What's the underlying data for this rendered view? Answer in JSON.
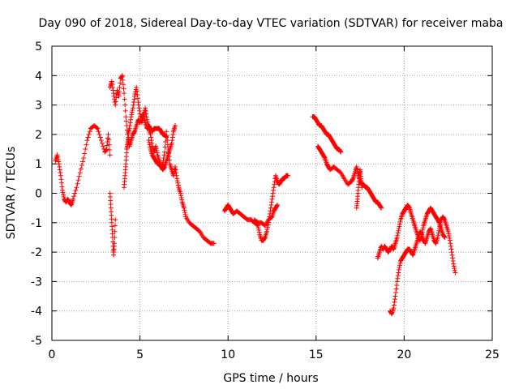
{
  "chart_data": {
    "type": "scatter",
    "title": "Day 090 of 2018, Sidereal Day-to-day VTEC variation (SDTVAR) for receiver maba",
    "xlabel": "GPS time / hours",
    "ylabel": "SDTVAR / TECUs",
    "xlim": [
      0,
      25
    ],
    "ylim": [
      -5,
      5
    ],
    "xticks": [
      0,
      5,
      10,
      15,
      20,
      25
    ],
    "yticks": [
      -5,
      -4,
      -3,
      -2,
      -1,
      0,
      1,
      2,
      3,
      4,
      5
    ],
    "grid": true,
    "marker": "+",
    "color": "#ff0000",
    "series": [
      {
        "name": "SDTVAR",
        "segments": [
          {
            "x": [
              0.2,
              0.3,
              0.4,
              0.5,
              0.6,
              0.7,
              0.8,
              0.9,
              1.0,
              1.1,
              1.2,
              1.4,
              1.6,
              1.8,
              2.0,
              2.2,
              2.4,
              2.6,
              2.8,
              3.0,
              3.1,
              3.2,
              3.3
            ],
            "y": [
              1.1,
              1.3,
              1.0,
              0.6,
              0.1,
              -0.2,
              -0.3,
              -0.2,
              -0.3,
              -0.4,
              -0.2,
              0.2,
              0.7,
              1.2,
              1.8,
              2.2,
              2.3,
              2.2,
              1.8,
              1.4,
              1.5,
              2.0,
              1.3
            ]
          },
          {
            "x": [
              3.3,
              3.35,
              3.4,
              3.45,
              3.5,
              3.55,
              3.6
            ],
            "y": [
              0.0,
              -0.5,
              -1.0,
              -1.5,
              -2.1,
              -1.7,
              -0.9
            ]
          },
          {
            "x": [
              3.3,
              3.4,
              3.5,
              3.6,
              3.7,
              3.8,
              3.9,
              4.0,
              4.1,
              4.2,
              4.3,
              4.4,
              4.5,
              4.6,
              4.7,
              4.8,
              4.9,
              5.0,
              5.1,
              5.2,
              5.3,
              5.4,
              5.5,
              5.6,
              5.7,
              5.8,
              5.9,
              6.0,
              6.1,
              6.2,
              6.3,
              6.4,
              6.5,
              6.6,
              6.7,
              6.8,
              6.9,
              7.0,
              7.1,
              7.2,
              7.3,
              7.4,
              7.5,
              7.6,
              7.8,
              8.0,
              8.2,
              8.4,
              8.6,
              8.8,
              9.0,
              9.2
            ],
            "y": [
              3.6,
              3.8,
              3.4,
              3.0,
              3.5,
              3.3,
              3.9,
              4.0,
              3.4,
              2.6,
              2.0,
              2.2,
              2.6,
              2.9,
              3.3,
              3.6,
              3.1,
              2.7,
              2.4,
              2.6,
              2.9,
              2.5,
              2.2,
              2.0,
              1.6,
              1.4,
              1.6,
              1.3,
              1.1,
              0.9,
              1.0,
              1.4,
              2.1,
              1.5,
              1.0,
              0.8,
              0.6,
              0.9,
              0.5,
              0.2,
              0.0,
              -0.3,
              -0.5,
              -0.8,
              -1.0,
              -1.1,
              -1.2,
              -1.3,
              -1.5,
              -1.6,
              -1.7,
              -1.7
            ]
          },
          {
            "x": [
              4.1,
              4.15,
              4.2,
              4.25,
              4.3,
              4.35,
              4.4,
              4.5,
              4.6,
              4.7,
              4.8,
              4.9,
              5.0,
              5.1,
              5.2,
              5.3,
              5.4,
              5.5,
              5.6,
              5.7,
              5.8,
              5.9,
              6.0,
              6.1,
              6.2,
              6.3,
              6.4,
              6.5
            ],
            "y": [
              0.2,
              0.6,
              1.0,
              1.5,
              1.7,
              1.9,
              1.6,
              1.8,
              2.0,
              2.1,
              2.3,
              2.5,
              2.4,
              2.6,
              2.7,
              2.4,
              2.2,
              2.3,
              2.2,
              2.1,
              2.2,
              2.2,
              2.2,
              2.2,
              2.1,
              2.0,
              2.0,
              1.9
            ]
          },
          {
            "x": [
              5.5,
              5.6,
              5.7,
              5.8,
              5.9,
              6.0,
              6.1,
              6.2,
              6.3,
              6.4,
              6.5,
              6.6,
              6.7,
              6.8,
              6.9,
              7.0
            ],
            "y": [
              1.8,
              1.5,
              1.3,
              1.2,
              1.1,
              1.0,
              1.0,
              0.9,
              0.8,
              0.9,
              1.1,
              1.3,
              1.5,
              1.7,
              2.1,
              2.3
            ]
          },
          {
            "x": [
              9.8,
              9.9,
              10.0,
              10.1,
              10.2,
              10.3,
              10.5,
              10.7,
              10.9,
              11.1,
              11.3,
              11.5,
              11.7,
              11.8,
              11.9,
              12.0,
              12.1,
              12.2,
              12.3,
              12.4,
              12.5,
              12.6,
              12.7,
              12.8,
              12.9,
              13.0,
              13.1,
              13.2,
              13.3,
              13.4
            ],
            "y": [
              -0.6,
              -0.5,
              -0.4,
              -0.5,
              -0.6,
              -0.7,
              -0.6,
              -0.7,
              -0.8,
              -0.9,
              -0.9,
              -1.0,
              -1.1,
              -1.4,
              -1.6,
              -1.6,
              -1.5,
              -1.3,
              -1.0,
              -0.6,
              -0.2,
              0.2,
              0.6,
              0.4,
              0.3,
              0.4,
              0.5,
              0.5,
              0.6,
              0.6
            ]
          },
          {
            "x": [
              11.5,
              11.7,
              11.9,
              12.1,
              12.3,
              12.5,
              12.6,
              12.7,
              12.8
            ],
            "y": [
              -0.9,
              -1.0,
              -1.0,
              -1.1,
              -0.9,
              -0.8,
              -0.6,
              -0.5,
              -0.4
            ]
          },
          {
            "x": [
              14.8,
              14.9,
              15.0,
              15.1,
              15.2,
              15.3,
              15.4,
              15.5,
              15.6,
              15.7,
              15.8,
              15.9,
              16.0,
              16.1,
              16.2,
              16.3,
              16.4
            ],
            "y": [
              2.6,
              2.6,
              2.5,
              2.4,
              2.3,
              2.3,
              2.2,
              2.1,
              2.0,
              2.0,
              1.9,
              1.8,
              1.7,
              1.6,
              1.5,
              1.5,
              1.4
            ]
          },
          {
            "x": [
              15.1,
              15.2,
              15.3,
              15.4,
              15.5,
              15.6,
              15.7,
              15.8,
              16.0,
              16.2,
              16.4,
              16.6,
              16.8,
              17.0,
              17.1,
              17.2,
              17.3,
              17.4,
              17.5,
              17.6,
              17.7,
              17.8,
              17.9,
              18.0,
              18.1,
              18.2,
              18.3,
              18.4,
              18.5,
              18.6,
              18.7
            ],
            "y": [
              1.6,
              1.5,
              1.4,
              1.3,
              1.2,
              1.0,
              0.9,
              0.8,
              0.9,
              0.8,
              0.7,
              0.5,
              0.3,
              0.4,
              0.5,
              0.7,
              0.9,
              0.6,
              0.4,
              0.3,
              0.3,
              0.2,
              0.2,
              0.1,
              0.0,
              -0.1,
              -0.2,
              -0.3,
              -0.3,
              -0.4,
              -0.5
            ]
          },
          {
            "x": [
              17.3,
              17.35,
              17.4,
              17.45,
              17.5,
              17.55,
              17.6
            ],
            "y": [
              -0.5,
              -0.2,
              0.2,
              0.6,
              0.8,
              0.5,
              0.2
            ]
          },
          {
            "x": [
              18.5,
              18.6,
              18.7,
              18.8,
              18.9,
              19.0,
              19.1,
              19.2,
              19.3,
              19.4,
              19.5,
              19.6,
              19.7,
              19.8,
              19.9,
              20.0,
              20.1,
              20.2,
              20.3,
              20.4,
              20.5,
              20.6,
              20.7,
              20.8,
              20.9,
              21.0,
              21.1,
              21.2,
              21.3,
              21.4,
              21.5,
              21.6,
              21.7,
              21.8,
              21.9,
              22.0,
              22.1,
              22.2,
              22.3
            ],
            "y": [
              -2.2,
              -2.0,
              -1.8,
              -1.9,
              -1.8,
              -1.9,
              -2.0,
              -1.9,
              -1.8,
              -1.9,
              -1.7,
              -1.5,
              -1.2,
              -0.9,
              -0.7,
              -0.6,
              -0.5,
              -0.4,
              -0.5,
              -0.7,
              -0.9,
              -1.1,
              -1.3,
              -1.5,
              -1.6,
              -1.4,
              -1.1,
              -0.9,
              -0.7,
              -0.6,
              -0.5,
              -0.6,
              -0.7,
              -0.8,
              -0.9,
              -1.0,
              -1.2,
              -1.4,
              -1.5
            ]
          },
          {
            "x": [
              19.2,
              19.3,
              19.4,
              19.5,
              19.6,
              19.7,
              19.8,
              19.9,
              20.0,
              20.1,
              20.2,
              20.3,
              20.4,
              20.5,
              20.6,
              20.7,
              20.8,
              20.9,
              21.0,
              21.1,
              21.2,
              21.3,
              21.4,
              21.5,
              21.6,
              21.7,
              21.8,
              21.9,
              22.0,
              22.1,
              22.2,
              22.3,
              22.4,
              22.5,
              22.6,
              22.7,
              22.8,
              22.9
            ],
            "y": [
              -4.0,
              -4.1,
              -3.9,
              -3.5,
              -3.0,
              -2.6,
              -2.3,
              -2.2,
              -2.1,
              -2.0,
              -1.9,
              -1.9,
              -2.0,
              -2.1,
              -1.9,
              -1.7,
              -1.5,
              -1.3,
              -1.4,
              -1.6,
              -1.7,
              -1.5,
              -1.3,
              -1.2,
              -1.4,
              -1.6,
              -1.7,
              -1.5,
              -1.2,
              -0.9,
              -0.8,
              -0.9,
              -1.1,
              -1.3,
              -1.6,
              -2.0,
              -2.4,
              -2.7
            ]
          }
        ]
      }
    ]
  }
}
